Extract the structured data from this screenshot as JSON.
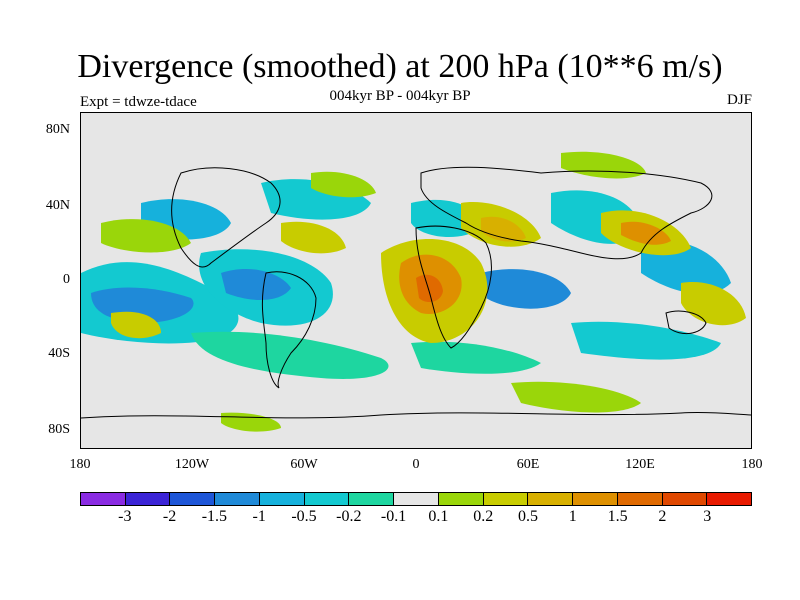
{
  "title": "Divergence (smoothed) at 200 hPa (10**6 m/s)",
  "subtitle": "004kyr BP - 004kyr BP",
  "experiment": "Expt = tdwze-tdace",
  "season": "DJF",
  "map": {
    "lat_labels": [
      "80N",
      "40N",
      "0",
      "40S",
      "80S"
    ],
    "lon_labels": [
      "180",
      "120W",
      "60W",
      "0",
      "60E",
      "120E",
      "180"
    ]
  },
  "colorbar": {
    "colors": [
      "#8a2be2",
      "#3b24d6",
      "#1e56d8",
      "#1f8ad8",
      "#16b1dc",
      "#13c9d0",
      "#1ed6a0",
      "#e6e6e6",
      "#9ad60a",
      "#c8cc00",
      "#d8b000",
      "#de9000",
      "#e06a00",
      "#e04800",
      "#e81a00"
    ],
    "labels": [
      "-3",
      "-2",
      "-1.5",
      "-1",
      "-0.5",
      "-0.2",
      "-0.1",
      "0.1",
      "0.2",
      "0.5",
      "1",
      "1.5",
      "2",
      "3"
    ]
  }
}
